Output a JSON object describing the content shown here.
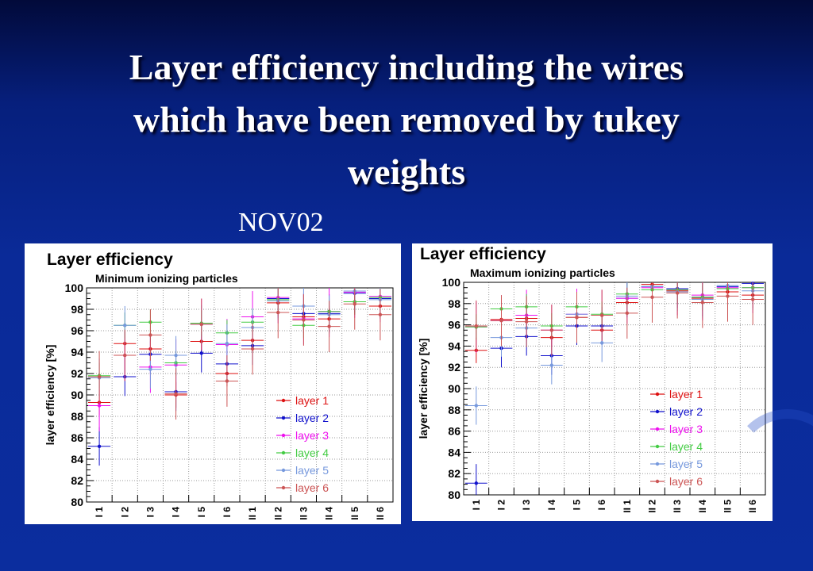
{
  "slide": {
    "title_line1": "Layer efficiency including the wires",
    "title_line2": "which have been removed by tukey",
    "title_line3": "weights",
    "subtitle": "NOV02"
  },
  "chart_data": [
    {
      "type": "scatter",
      "title": "Layer efficiency",
      "subtitle": "Minimum ionizing particles",
      "ylabel": "layer efficiency [%]",
      "ylim": [
        80,
        100
      ],
      "yticks": [
        80,
        82,
        84,
        86,
        88,
        90,
        92,
        94,
        96,
        98,
        100
      ],
      "grid": true,
      "legend_position": "bottom-right",
      "categories": [
        "I 1",
        "I 2",
        "I 3",
        "I 4",
        "I 5",
        "I 6",
        "II 1",
        "II 2",
        "II 3",
        "II 4",
        "II 5",
        "II 6"
      ],
      "series": [
        {
          "name": "layer 1",
          "color": "#dd1111",
          "values": [
            89.3,
            94.8,
            94.3,
            90.0,
            95.0,
            92.0,
            95.1,
            98.6,
            97.3,
            97.1,
            98.7,
            98.3
          ]
        },
        {
          "name": "layer 2",
          "color": "#1111cc",
          "values": [
            85.2,
            91.7,
            93.8,
            90.3,
            93.9,
            92.9,
            94.6,
            99.0,
            97.6,
            97.6,
            99.5,
            99.0
          ]
        },
        {
          "name": "layer 3",
          "color": "#ee11ee",
          "values": [
            89.0,
            93.7,
            92.6,
            92.8,
            96.6,
            94.7,
            97.3,
            99.1,
            97.1,
            97.8,
            99.6,
            99.2
          ]
        },
        {
          "name": "layer 4",
          "color": "#44cc44",
          "values": [
            91.8,
            96.5,
            96.8,
            93.0,
            96.7,
            95.8,
            96.8,
            98.9,
            96.5,
            97.8,
            98.7,
            99.1
          ]
        },
        {
          "name": "layer 5",
          "color": "#7799dd",
          "values": [
            91.6,
            96.5,
            92.4,
            93.7,
            96.6,
            94.8,
            96.3,
            98.8,
            98.3,
            97.5,
            99.7,
            98.9
          ]
        },
        {
          "name": "layer 6",
          "color": "#cc5555",
          "values": [
            91.7,
            93.7,
            95.6,
            90.1,
            96.6,
            91.3,
            94.3,
            97.7,
            97.0,
            96.4,
            98.5,
            97.5
          ]
        }
      ]
    },
    {
      "type": "scatter",
      "title": "Layer efficiency",
      "subtitle": "Maximum ionizing particles",
      "ylabel": "layer efficiency [%]",
      "ylim": [
        80,
        100
      ],
      "yticks": [
        80,
        82,
        84,
        86,
        88,
        90,
        92,
        94,
        96,
        98,
        100
      ],
      "grid": true,
      "legend_position": "bottom-right",
      "categories": [
        "I 1",
        "I 2",
        "I 3",
        "I 4",
        "I 5",
        "I 6",
        "II 1",
        "II 2",
        "II 3",
        "II 4",
        "II 5",
        "II 6"
      ],
      "series": [
        {
          "name": "layer 1",
          "color": "#dd1111",
          "values": [
            93.6,
            96.5,
            96.6,
            94.8,
            96.7,
            95.5,
            98.1,
            99.8,
            99.2,
            98.5,
            99.1,
            98.8
          ]
        },
        {
          "name": "layer 2",
          "color": "#1111cc",
          "values": [
            81.1,
            93.8,
            94.9,
            93.1,
            95.9,
            95.9,
            98.5,
            99.6,
            99.4,
            98.6,
            99.6,
            99.9
          ]
        },
        {
          "name": "layer 3",
          "color": "#ee11ee",
          "values": [
            95.8,
            96.4,
            96.9,
            95.5,
            97.0,
            96.9,
            98.5,
            99.5,
            99.3,
            98.8,
            99.5,
            99.5
          ]
        },
        {
          "name": "layer 4",
          "color": "#44cc44",
          "values": [
            95.8,
            97.5,
            97.7,
            95.9,
            97.7,
            97.0,
            98.9,
            99.3,
            99.3,
            98.6,
            99.4,
            99.5
          ]
        },
        {
          "name": "layer 5",
          "color": "#7799dd",
          "values": [
            88.4,
            94.8,
            95.7,
            92.2,
            97.0,
            94.3,
            98.7,
            99.6,
            99.1,
            98.4,
            99.7,
            99.2
          ]
        },
        {
          "name": "layer 6",
          "color": "#cc5555",
          "values": [
            95.9,
            96.4,
            96.3,
            95.5,
            96.7,
            96.9,
            97.1,
            98.6,
            99.0,
            98.1,
            98.7,
            98.4
          ]
        }
      ]
    }
  ]
}
